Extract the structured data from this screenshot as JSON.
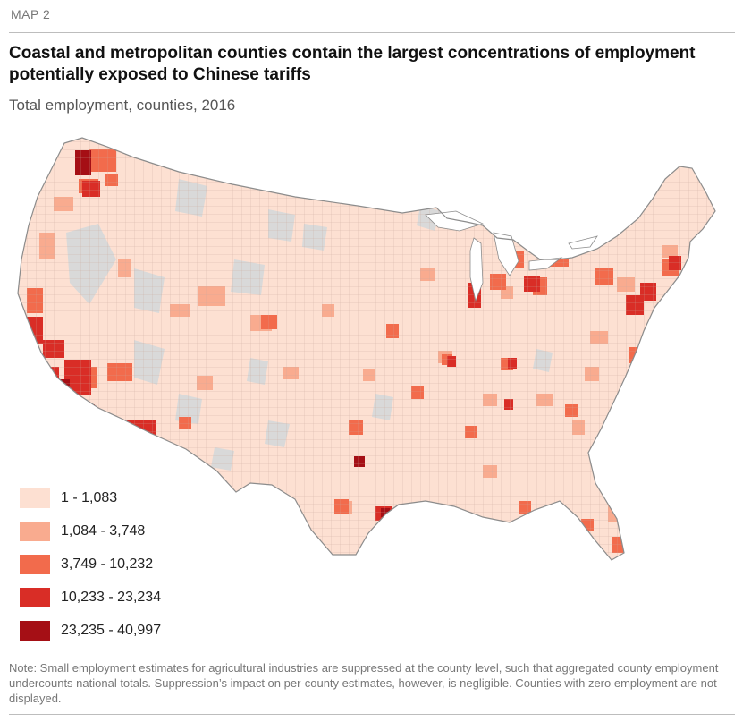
{
  "figure": {
    "label": "MAP 2",
    "title": "Coastal and metropolitan counties contain the largest concentrations of employment potentially exposed to Chinese tariffs",
    "subtitle": "Total employment, counties, 2016",
    "note": "Note: Small employment estimates for agricultural industries are suppressed at the county level, such that aggregated county employment undercounts national totals. Suppression’s impact on per-county estimates, however, is negligible. Counties with zero employment are not displayed."
  },
  "colors": {
    "no_data": "#d9d9d9",
    "border": "#9e9e9e",
    "outline": "#8c8c8c"
  },
  "legend": [
    {
      "label": "1 - 1,083",
      "color": "#fde0d2"
    },
    {
      "label": "1,084 - 3,748",
      "color": "#f9ab8f"
    },
    {
      "label": "3,749 - 10,232",
      "color": "#f26b4c"
    },
    {
      "label": "10,233 - 23,234",
      "color": "#d92d26"
    },
    {
      "label": "23,235 - 40,997",
      "color": "#a50f15"
    }
  ]
}
